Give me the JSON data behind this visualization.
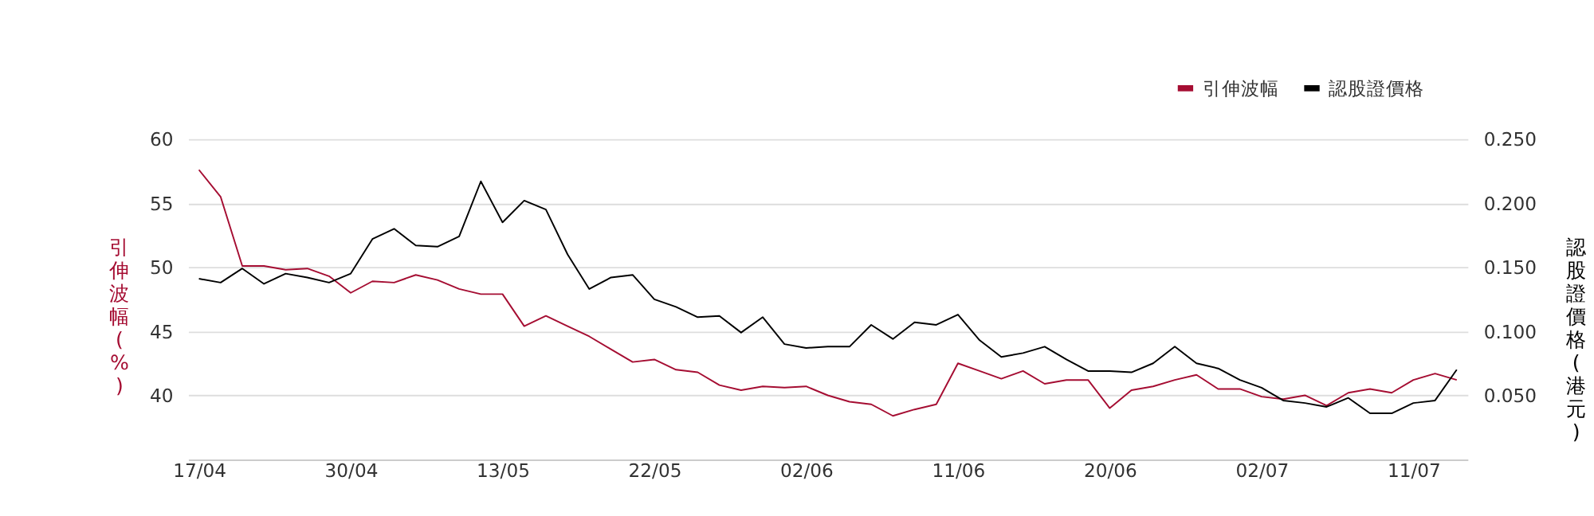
{
  "chart_data": {
    "type": "line",
    "ylabel": "引伸波幅(%)",
    "y2label": "認股證價格(港元)",
    "categories": [
      "17/04",
      null,
      null,
      null,
      null,
      null,
      null,
      "30/04",
      null,
      null,
      null,
      null,
      null,
      null,
      "13/05",
      null,
      null,
      null,
      null,
      null,
      null,
      "22/05",
      null,
      null,
      null,
      null,
      null,
      null,
      "02/06",
      null,
      null,
      null,
      null,
      null,
      null,
      "11/06",
      null,
      null,
      null,
      null,
      null,
      null,
      "20/06",
      null,
      null,
      null,
      null,
      null,
      null,
      "02/07",
      null,
      null,
      null,
      null,
      null,
      null,
      "11/07",
      null,
      null
    ],
    "series": [
      {
        "name": "引伸波幅",
        "color": "#a50d32",
        "values": [
          57.6,
          55.5,
          50.1,
          50.1,
          49.8,
          49.9,
          49.3,
          48.0,
          48.9,
          48.8,
          49.4,
          49.0,
          48.3,
          47.9,
          47.9,
          45.4,
          46.2,
          45.4,
          44.6,
          43.6,
          42.6,
          42.8,
          42.0,
          41.8,
          40.8,
          40.4,
          40.7,
          40.6,
          40.7,
          40.0,
          39.5,
          39.3,
          38.4,
          38.9,
          39.3,
          42.5,
          41.9,
          41.3,
          41.9,
          40.9,
          41.2,
          41.2,
          39.0,
          40.4,
          40.7,
          41.2,
          41.6,
          40.5,
          40.5,
          39.9,
          39.7,
          40.0,
          39.2,
          40.2,
          40.5,
          40.2,
          41.2,
          41.7,
          41.2
        ]
      },
      {
        "name": "認股證價格",
        "color": "#000000",
        "axis": "y2",
        "values": [
          0.141,
          0.138,
          0.149,
          0.137,
          0.145,
          0.142,
          0.138,
          0.145,
          0.172,
          0.18,
          0.167,
          0.166,
          0.174,
          0.217,
          0.185,
          0.202,
          0.195,
          0.16,
          0.133,
          0.142,
          0.144,
          0.125,
          0.119,
          0.111,
          0.112,
          0.099,
          0.111,
          0.09,
          0.087,
          0.088,
          0.088,
          0.105,
          0.094,
          0.107,
          0.105,
          0.113,
          0.093,
          0.08,
          0.083,
          0.088,
          0.078,
          0.069,
          0.069,
          0.068,
          0.075,
          0.088,
          0.075,
          0.071,
          0.062,
          0.056,
          0.046,
          0.044,
          0.041,
          0.048,
          0.036,
          0.036,
          0.044,
          0.046,
          0.07
        ]
      }
    ],
    "ylim": [
      35,
      60
    ],
    "yticks": [
      40,
      45,
      50,
      55,
      60
    ],
    "y2lim": [
      0,
      0.25
    ],
    "y2ticks": [
      {
        "value": 0.05,
        "label": "0.050"
      },
      {
        "value": 0.1,
        "label": "0.100"
      },
      {
        "value": 0.15,
        "label": "0.150"
      },
      {
        "value": 0.2,
        "label": "0.200"
      },
      {
        "value": 0.25,
        "label": "0.250"
      }
    ],
    "grid": "y",
    "legend": "top right",
    "line_style": "solid",
    "marker": "none"
  }
}
